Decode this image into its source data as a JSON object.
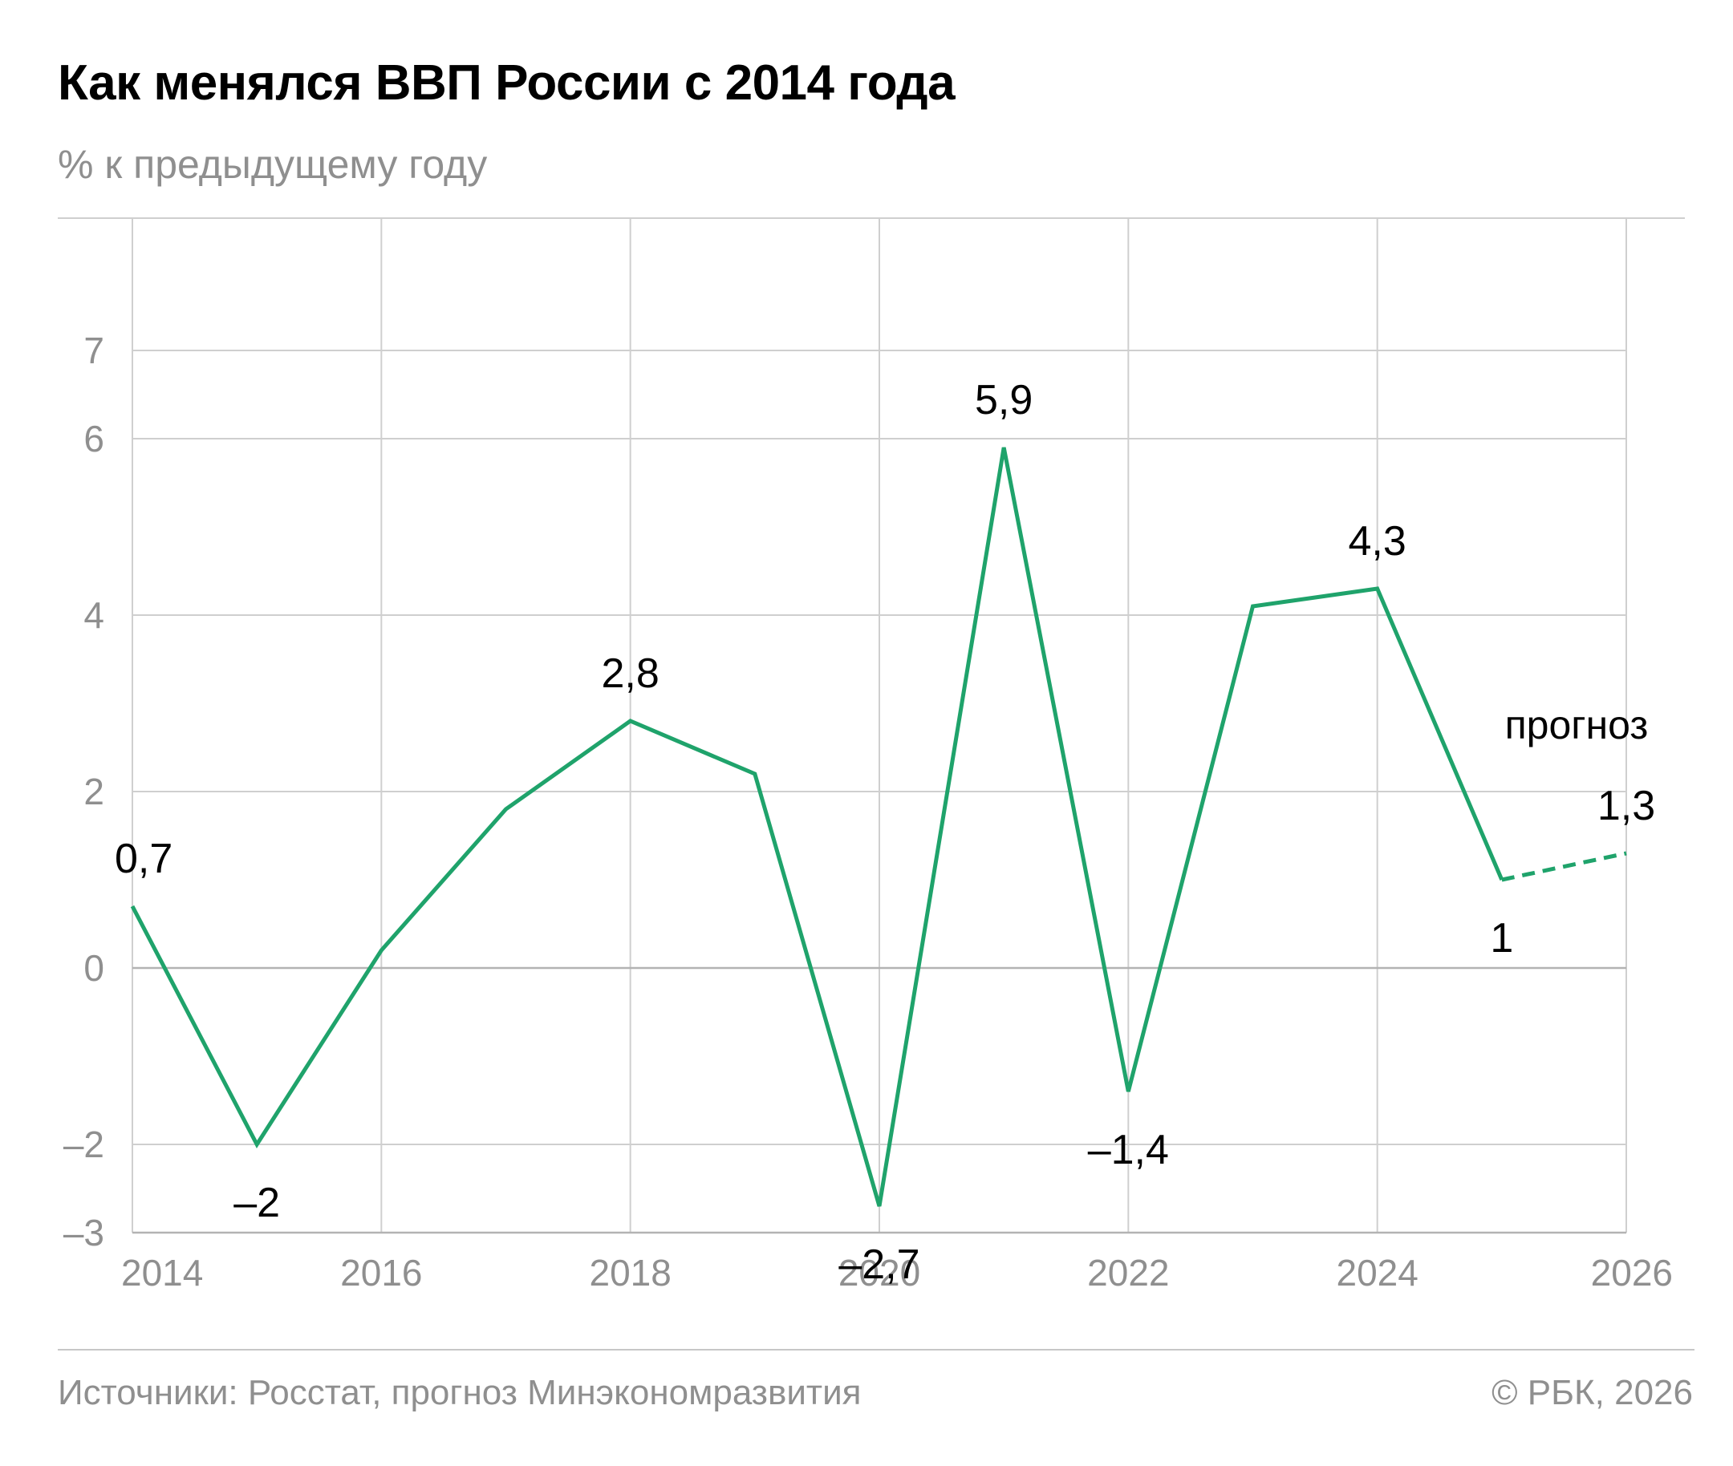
{
  "header": {
    "title": "Как менялся ВВП России с 2014 года",
    "subtitle": "% к предыдущему году"
  },
  "footer": {
    "source": "Источники: Росстат, прогноз Минэкономразвития",
    "copyright": "© РБК, 2026"
  },
  "colors": {
    "line": "#1fa36b",
    "grid": "#cfcfcf",
    "zero_line": "#b3b3b3",
    "tick_text": "#8f8f8f",
    "label_text": "#000000"
  },
  "chart_data": {
    "type": "line",
    "x": [
      2014,
      2015,
      2016,
      2017,
      2018,
      2019,
      2020,
      2021,
      2022,
      2023,
      2024,
      2025,
      2026
    ],
    "series": [
      {
        "values": [
          0.7,
          -2,
          0.2,
          1.8,
          2.8,
          2.2,
          -2.7,
          5.9,
          -1.4,
          4.1,
          4.3,
          1.0,
          1.3
        ],
        "forecast_from_x": 2025
      }
    ],
    "point_labels": [
      {
        "x": 2014,
        "y": 0.7,
        "text": "0,7",
        "pos": "above"
      },
      {
        "x": 2015,
        "y": -2,
        "text": "–2",
        "pos": "below"
      },
      {
        "x": 2018,
        "y": 2.8,
        "text": "2,8",
        "pos": "above"
      },
      {
        "x": 2020,
        "y": -2.7,
        "text": "–2,7",
        "pos": "below"
      },
      {
        "x": 2021,
        "y": 5.9,
        "text": "5,9",
        "pos": "above"
      },
      {
        "x": 2022,
        "y": -1.4,
        "text": "–1,4",
        "pos": "below"
      },
      {
        "x": 2024,
        "y": 4.3,
        "text": "4,3",
        "pos": "above"
      },
      {
        "x": 2025,
        "y": 1.0,
        "text": "1",
        "pos": "below"
      },
      {
        "x": 2026,
        "y": 1.3,
        "text": "1,3",
        "pos": "above"
      }
    ],
    "annotations": [
      {
        "x": 2025.6,
        "y": 2.6,
        "text": "прогноз"
      }
    ],
    "xticks": [
      2014,
      2016,
      2018,
      2020,
      2022,
      2024,
      2026
    ],
    "xtick_labels": [
      "2014",
      "2016",
      "2018",
      "2020",
      "2022",
      "2024",
      "2026"
    ],
    "yticks": [
      -3,
      -2,
      0,
      2,
      4,
      6,
      7
    ],
    "ytick_labels": [
      "–3",
      "–2",
      "0",
      "2",
      "4",
      "6",
      "7"
    ],
    "xlim": [
      2014,
      2026
    ],
    "ylim": [
      -3,
      8.5
    ],
    "grid": true,
    "legend": "none"
  }
}
